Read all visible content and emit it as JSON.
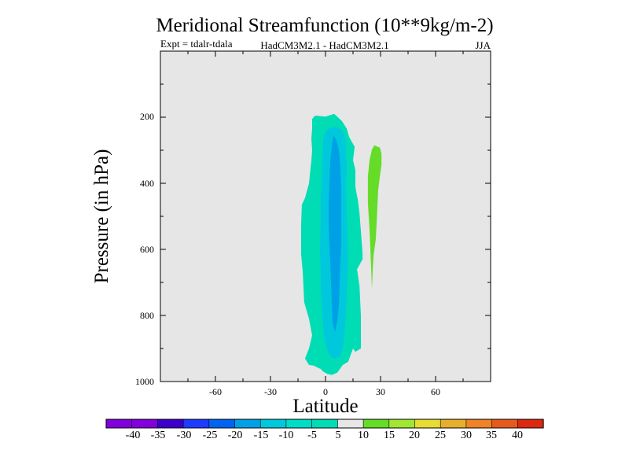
{
  "chart_data": {
    "type": "contour",
    "title": "Meridional Streamfunction (10**9kg/m-2)",
    "subtitle_left": "Expt = tdalr-tdala",
    "subtitle_center": "HadCM3M2.1 - HadCM3M2.1",
    "subtitle_right": "JJA",
    "xlabel": "Latitude",
    "ylabel": "Pressure (in hPa)",
    "xlim": [
      -90,
      90
    ],
    "ylim": [
      1000,
      0
    ],
    "xticks": [
      "-60",
      "-30",
      "0",
      "30",
      "60"
    ],
    "xtick_values": [
      -60,
      -30,
      0,
      30,
      60
    ],
    "yticks": [
      "200",
      "400",
      "600",
      "800",
      "1000"
    ],
    "ytick_values": [
      200,
      400,
      600,
      800,
      1000
    ],
    "contour_regions": [
      {
        "level": "-10 to -5",
        "color": "#00dcb4",
        "points": [
          [
            -7.3,
            205
          ],
          [
            -5.6,
            195
          ],
          [
            0,
            198
          ],
          [
            4.7,
            190
          ],
          [
            6.4,
            198
          ],
          [
            9,
            212
          ],
          [
            11.6,
            235
          ],
          [
            12.9,
            260
          ],
          [
            15.9,
            290
          ],
          [
            15,
            330
          ],
          [
            16.3,
            360
          ],
          [
            16.3,
            412
          ],
          [
            17.6,
            450
          ],
          [
            18.5,
            490
          ],
          [
            20.2,
            610
          ],
          [
            20.2,
            630
          ],
          [
            17.2,
            660
          ],
          [
            18.5,
            710
          ],
          [
            19.3,
            800
          ],
          [
            19.3,
            900
          ],
          [
            16.3,
            910
          ],
          [
            15,
            900
          ],
          [
            12.4,
            940
          ],
          [
            9.4,
            950
          ],
          [
            6.4,
            973
          ],
          [
            3.4,
            980
          ],
          [
            0.9,
            977
          ],
          [
            -1.3,
            970
          ],
          [
            -2.6,
            962
          ],
          [
            -4.3,
            958
          ],
          [
            -6.4,
            952
          ],
          [
            -9,
            950
          ],
          [
            -11.2,
            930
          ],
          [
            -9,
            900
          ],
          [
            -7.3,
            860
          ],
          [
            -9,
            810
          ],
          [
            -11.6,
            760
          ],
          [
            -12.4,
            670
          ],
          [
            -13.3,
            615
          ],
          [
            -13.3,
            525
          ],
          [
            -12.9,
            465
          ],
          [
            -11.2,
            445
          ],
          [
            -9,
            400
          ],
          [
            -7.7,
            332
          ],
          [
            -7.3,
            300
          ],
          [
            -7.7,
            265
          ],
          [
            -7.3,
            235
          ]
        ]
      },
      {
        "level": "-15 to -10",
        "color": "#00c8dc",
        "points": [
          [
            -1.3,
            265
          ],
          [
            0.4,
            240
          ],
          [
            3.4,
            230
          ],
          [
            6.4,
            232
          ],
          [
            9,
            240
          ],
          [
            10.7,
            265
          ],
          [
            11.2,
            300
          ],
          [
            11.6,
            350
          ],
          [
            11.2,
            410
          ],
          [
            11.6,
            480
          ],
          [
            12,
            560
          ],
          [
            12.4,
            600
          ],
          [
            12,
            660
          ],
          [
            11.6,
            720
          ],
          [
            11.2,
            790
          ],
          [
            10.3,
            860
          ],
          [
            9.4,
            900
          ],
          [
            7.7,
            925
          ],
          [
            5.1,
            932
          ],
          [
            3,
            925
          ],
          [
            1.3,
            910
          ],
          [
            0,
            885
          ],
          [
            -0.9,
            855
          ],
          [
            -1.7,
            800
          ],
          [
            -2.6,
            720
          ],
          [
            -2.6,
            670
          ],
          [
            -3,
            600
          ],
          [
            -2.6,
            520
          ],
          [
            -2.6,
            460
          ],
          [
            -2.1,
            400
          ],
          [
            -1.7,
            330
          ]
        ]
      },
      {
        "level": "-20 to -15",
        "color": "#00a0e6",
        "points": [
          [
            4.3,
            255
          ],
          [
            6,
            270
          ],
          [
            7.3,
            300
          ],
          [
            8.1,
            350
          ],
          [
            8.6,
            420
          ],
          [
            8.6,
            500
          ],
          [
            8.6,
            580
          ],
          [
            8.1,
            640
          ],
          [
            7.7,
            700
          ],
          [
            7.3,
            770
          ],
          [
            6.4,
            820
          ],
          [
            5.1,
            850
          ],
          [
            3.8,
            820
          ],
          [
            3.4,
            760
          ],
          [
            3,
            700
          ],
          [
            2.6,
            640
          ],
          [
            2.1,
            580
          ],
          [
            1.7,
            520
          ],
          [
            1.7,
            460
          ],
          [
            2.1,
            400
          ],
          [
            2.6,
            330
          ],
          [
            3.4,
            290
          ]
        ]
      },
      {
        "level": "5 to 10",
        "color": "#64dc28",
        "points": [
          [
            25.3,
            298
          ],
          [
            26.6,
            285
          ],
          [
            29.6,
            292
          ],
          [
            30.5,
            310
          ],
          [
            30.5,
            345
          ],
          [
            29.6,
            380
          ],
          [
            28.7,
            420
          ],
          [
            28.3,
            470
          ],
          [
            27.9,
            520
          ],
          [
            27.4,
            570
          ],
          [
            26.2,
            620
          ],
          [
            25.7,
            665
          ],
          [
            25.3,
            720
          ],
          [
            24.9,
            660
          ],
          [
            24.4,
            590
          ],
          [
            24,
            540
          ],
          [
            23.1,
            460
          ],
          [
            23.1,
            380
          ],
          [
            24,
            330
          ]
        ]
      }
    ],
    "colorbar": {
      "labels": [
        "-40",
        "-35",
        "-30",
        "-25",
        "-20",
        "-15",
        "-10",
        "-5",
        "5",
        "10",
        "15",
        "20",
        "25",
        "30",
        "35",
        "40"
      ],
      "colors": [
        "#8200dc",
        "#3c00c8",
        "#1e3cff",
        "#0064f0",
        "#00a0e6",
        "#00c8dc",
        "#00dcc8",
        "#00dcb4",
        "#e6e6e6",
        "#64dc28",
        "#a0e632",
        "#e6dc32",
        "#e6af2d",
        "#f08228",
        "#e65a1e",
        "#dc2810"
      ]
    }
  }
}
